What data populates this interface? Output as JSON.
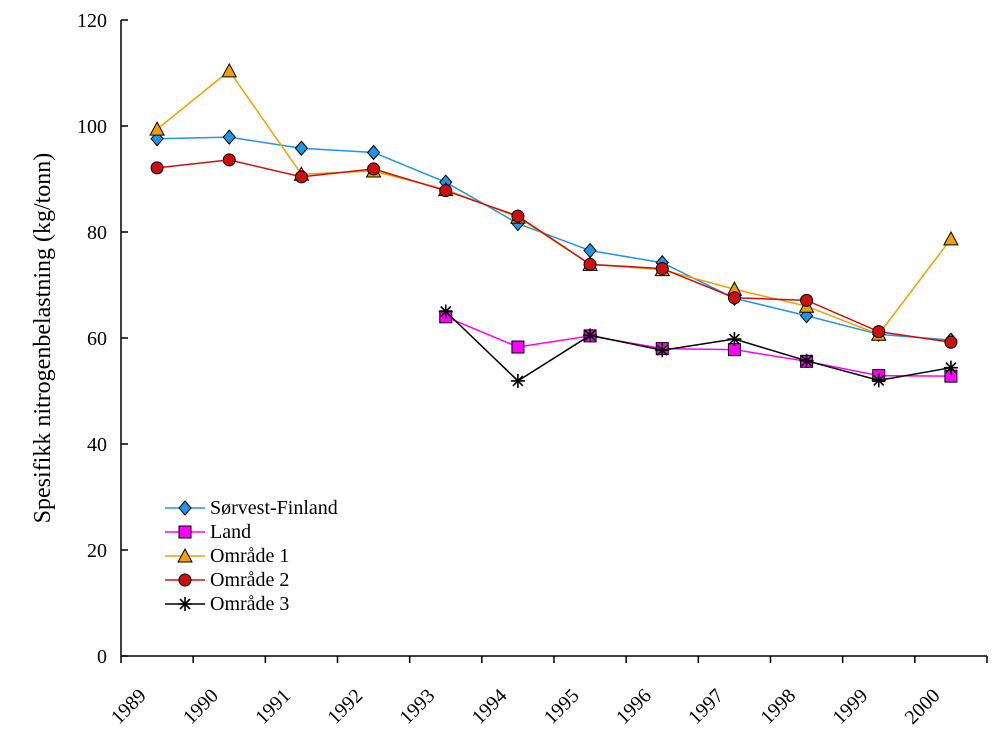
{
  "chart_data": {
    "type": "line",
    "title": "",
    "xlabel": "",
    "ylabel": "Spesifikk nitrogenbelastning (kg/tonn)",
    "categories": [
      "1989",
      "1990",
      "1991",
      "1992",
      "1993",
      "1994",
      "1995",
      "1996",
      "1997",
      "1998",
      "1999",
      "2000"
    ],
    "ylim": [
      0,
      120
    ],
    "yticks": [
      0,
      20,
      40,
      60,
      80,
      100,
      120
    ],
    "grid": false,
    "legend_position": "bottom-left",
    "series": [
      {
        "name": "Sørvest-Finland",
        "color": "#1f96e8",
        "marker": "diamond",
        "values": [
          97.6,
          97.9,
          95.8,
          95.0,
          89.4,
          81.6,
          76.5,
          74.2,
          67.5,
          64.2,
          60.7,
          59.6
        ]
      },
      {
        "name": "Land",
        "color": "#ff00ff",
        "marker": "square",
        "values": [
          null,
          null,
          null,
          null,
          64.0,
          58.3,
          60.4,
          58.0,
          57.8,
          55.6,
          52.9,
          52.8
        ]
      },
      {
        "name": "Område 1",
        "color": "#f0a000",
        "marker": "triangle",
        "values": [
          99.4,
          110.4,
          90.9,
          91.5,
          88.0,
          82.8,
          73.9,
          72.9,
          69.2,
          66.0,
          60.7,
          78.7
        ]
      },
      {
        "name": "Område 2",
        "color": "#cc1010",
        "marker": "circle",
        "values": [
          92.1,
          93.6,
          90.4,
          91.9,
          87.8,
          83.0,
          73.9,
          73.1,
          67.6,
          67.1,
          61.2,
          59.2
        ]
      },
      {
        "name": "Område 3",
        "color": "#000000",
        "marker": "star",
        "values": [
          null,
          null,
          null,
          null,
          65.0,
          51.9,
          60.5,
          57.7,
          59.8,
          55.7,
          52.0,
          54.4
        ]
      }
    ]
  }
}
